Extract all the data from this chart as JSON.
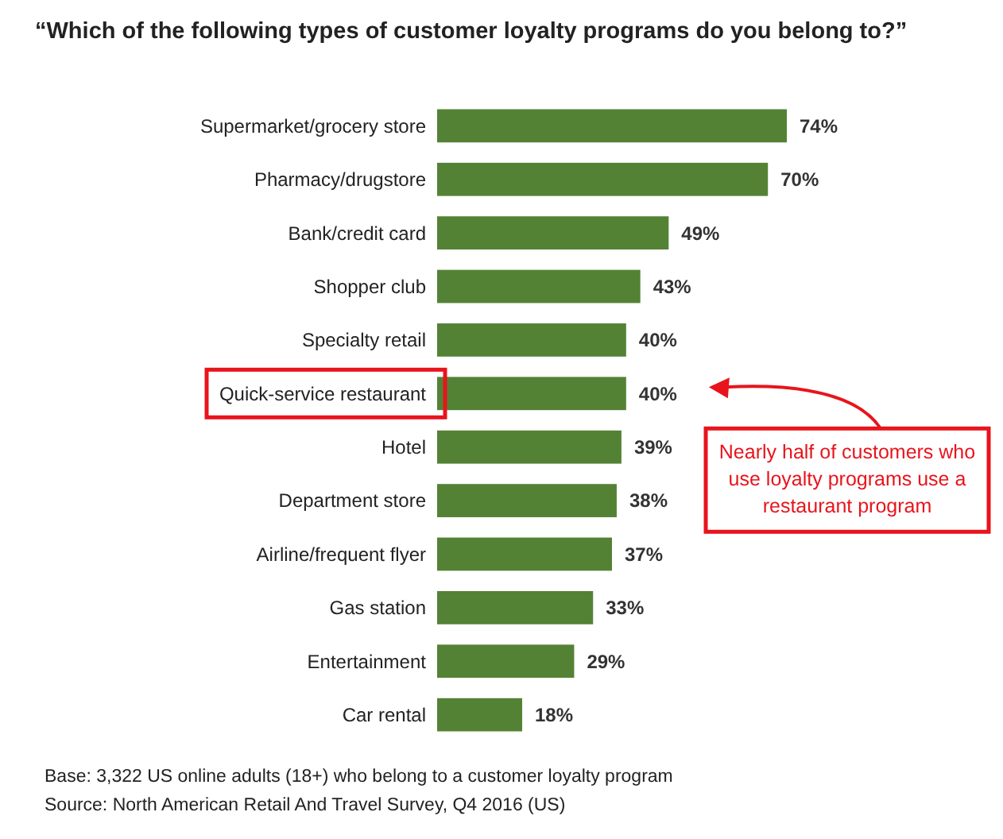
{
  "chart_data": {
    "type": "bar",
    "orientation": "horizontal",
    "title": "“Which of the following types of customer loyalty programs do you belong to?”",
    "categories": [
      "Supermarket/grocery store",
      "Pharmacy/drugstore",
      "Bank/credit card",
      "Shopper club",
      "Specialty retail",
      "Quick-service restaurant",
      "Hotel",
      "Department store",
      "Airline/frequent flyer",
      "Gas station",
      "Entertainment",
      "Car rental"
    ],
    "values": [
      74,
      70,
      49,
      43,
      40,
      40,
      39,
      38,
      37,
      33,
      29,
      18
    ],
    "value_labels": [
      "74%",
      "70%",
      "49%",
      "43%",
      "40%",
      "40%",
      "39%",
      "38%",
      "37%",
      "33%",
      "29%",
      "18%"
    ],
    "color": "#548235",
    "annotations": [
      "Nearly half of customers who use loyalty programs use a restaurant program",
      "Base: 3,322 US online adults (18+) who belong to a customer loyalty program",
      "Source: North American Retail And Travel Survey, Q4 2016 (US)"
    ]
  }
}
